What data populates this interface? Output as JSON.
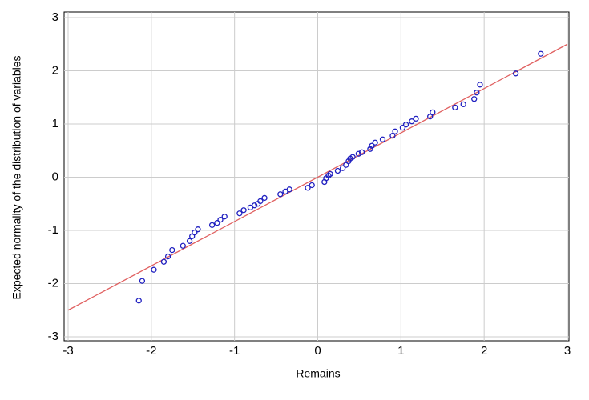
{
  "chart_data": {
    "type": "scatter",
    "xlabel": "Remains",
    "ylabel": "Expected normality of the distribution of variables",
    "xlim": [
      -3,
      3
    ],
    "ylim": [
      -3,
      3
    ],
    "xticks": [
      -3,
      -2,
      -1,
      0,
      1,
      2,
      3
    ],
    "yticks": [
      -3,
      -2,
      -1,
      0,
      1,
      2,
      3
    ],
    "grid": true,
    "series": [
      {
        "color": "#2020c0",
        "x": [
          -2.15,
          -2.11,
          -1.97,
          -1.85,
          -1.8,
          -1.75,
          -1.62,
          -1.54,
          -1.51,
          -1.48,
          -1.44,
          -1.27,
          -1.21,
          -1.17,
          -1.12,
          -0.94,
          -0.89,
          -0.81,
          -0.76,
          -0.72,
          -0.69,
          -0.64,
          -0.45,
          -0.39,
          -0.34,
          -0.12,
          -0.07,
          0.08,
          0.1,
          0.13,
          0.15,
          0.24,
          0.3,
          0.34,
          0.37,
          0.39,
          0.42,
          0.49,
          0.53,
          0.63,
          0.65,
          0.69,
          0.78,
          0.9,
          0.93,
          1.02,
          1.06,
          1.13,
          1.18,
          1.35,
          1.38,
          1.65,
          1.75,
          1.88,
          1.91,
          1.95,
          2.38,
          2.68
        ],
        "values": [
          -2.32,
          -1.95,
          -1.74,
          -1.59,
          -1.49,
          -1.37,
          -1.29,
          -1.2,
          -1.11,
          -1.04,
          -0.98,
          -0.9,
          -0.86,
          -0.8,
          -0.74,
          -0.68,
          -0.62,
          -0.57,
          -0.53,
          -0.5,
          -0.45,
          -0.39,
          -0.32,
          -0.27,
          -0.23,
          -0.2,
          -0.15,
          -0.09,
          -0.02,
          0.03,
          0.06,
          0.12,
          0.17,
          0.23,
          0.3,
          0.35,
          0.38,
          0.44,
          0.47,
          0.53,
          0.59,
          0.65,
          0.71,
          0.78,
          0.86,
          0.93,
          0.99,
          1.05,
          1.1,
          1.14,
          1.22,
          1.31,
          1.37,
          1.47,
          1.59,
          1.74,
          1.95,
          2.32
        ]
      }
    ],
    "reference_line": {
      "color": "#e06060",
      "x": [
        -3,
        3
      ],
      "values": [
        -2.5,
        2.5
      ]
    }
  }
}
